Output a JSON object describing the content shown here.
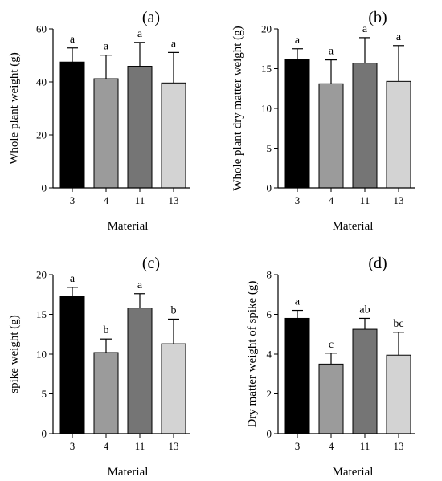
{
  "figure": {
    "bar_colors": [
      "#000000",
      "#9b9b9b",
      "#757575",
      "#d3d3d3"
    ]
  },
  "chart_data": [
    {
      "panel": "(a)",
      "type": "bar",
      "categories": [
        "3",
        "4",
        "11",
        "13"
      ],
      "values": [
        47.5,
        41.2,
        45.9,
        39.6
      ],
      "errors": [
        5.3,
        8.9,
        9.0,
        11.5
      ],
      "significance": [
        "a",
        "a",
        "a",
        "a"
      ],
      "xlabel": "Material",
      "ylabel": "Whole plant weight  (g)",
      "ylim": [
        0,
        60
      ],
      "yticks": [
        0,
        20,
        40,
        60
      ]
    },
    {
      "panel": "(b)",
      "type": "bar",
      "categories": [
        "3",
        "4",
        "11",
        "13"
      ],
      "values": [
        16.2,
        13.1,
        15.7,
        13.4
      ],
      "errors": [
        1.3,
        3.0,
        3.2,
        4.5
      ],
      "significance": [
        "a",
        "a",
        "a",
        "a"
      ],
      "xlabel": "Material",
      "ylabel": "Whole plant dry matter weight  (g)",
      "ylim": [
        0,
        20
      ],
      "yticks": [
        0,
        5,
        10,
        15,
        20
      ]
    },
    {
      "panel": "(c)",
      "type": "bar",
      "categories": [
        "3",
        "4",
        "11",
        "13"
      ],
      "values": [
        17.3,
        10.2,
        15.8,
        11.3
      ],
      "errors": [
        1.1,
        1.7,
        1.8,
        3.1
      ],
      "significance": [
        "a",
        "b",
        "a",
        "b"
      ],
      "xlabel": "Material",
      "ylabel": "spike weight  (g)",
      "ylim": [
        0,
        20
      ],
      "yticks": [
        0,
        5,
        10,
        15,
        20
      ]
    },
    {
      "panel": "(d)",
      "type": "bar",
      "categories": [
        "3",
        "4",
        "11",
        "13"
      ],
      "values": [
        5.8,
        3.5,
        5.25,
        3.95
      ],
      "errors": [
        0.4,
        0.55,
        0.55,
        1.15
      ],
      "significance": [
        "a",
        "c",
        "ab",
        "bc"
      ],
      "xlabel": "Material",
      "ylabel": "Dry matter weight of spike  (g)",
      "ylim": [
        0,
        8
      ],
      "yticks": [
        0,
        2,
        4,
        6,
        8
      ]
    }
  ]
}
